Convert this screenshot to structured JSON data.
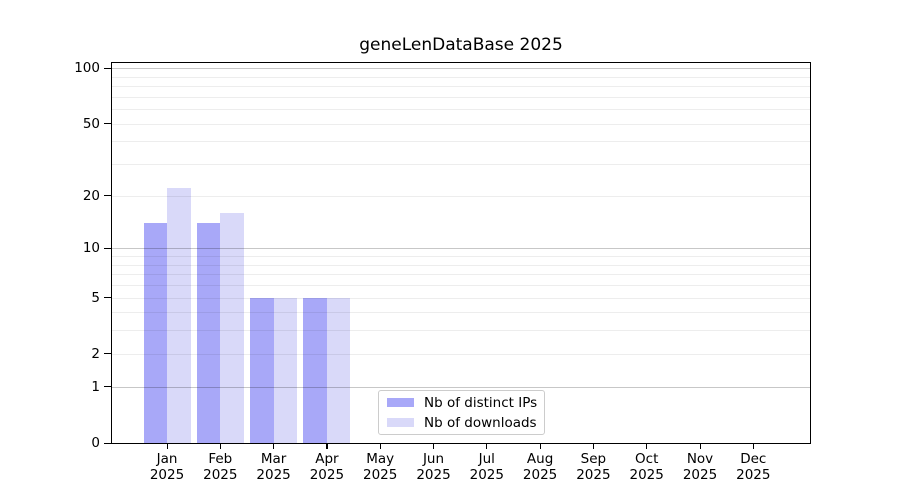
{
  "title": "geneLenDataBase 2025",
  "chart_data": {
    "type": "bar",
    "title": "geneLenDataBase 2025",
    "categories": [
      "Jan",
      "Feb",
      "Mar",
      "Apr",
      "May",
      "Jun",
      "Jul",
      "Aug",
      "Sep",
      "Oct",
      "Nov",
      "Dec"
    ],
    "category_year": "2025",
    "series": [
      {
        "name": "Nb of distinct IPs",
        "color": "#a8a8f8",
        "values": [
          14,
          14,
          5,
          5,
          0,
          0,
          0,
          0,
          0,
          0,
          0,
          0
        ]
      },
      {
        "name": "Nb of downloads",
        "color": "#d9d9f9",
        "values": [
          22,
          16,
          5,
          5,
          0,
          0,
          0,
          0,
          0,
          0,
          0,
          0
        ]
      }
    ],
    "yscale": "log1p",
    "ylim": [
      0,
      110
    ],
    "yticks": [
      0,
      1,
      2,
      5,
      10,
      20,
      50,
      100
    ],
    "grid": "horizontal major+minor",
    "legend_position": "inside bottom-center"
  }
}
